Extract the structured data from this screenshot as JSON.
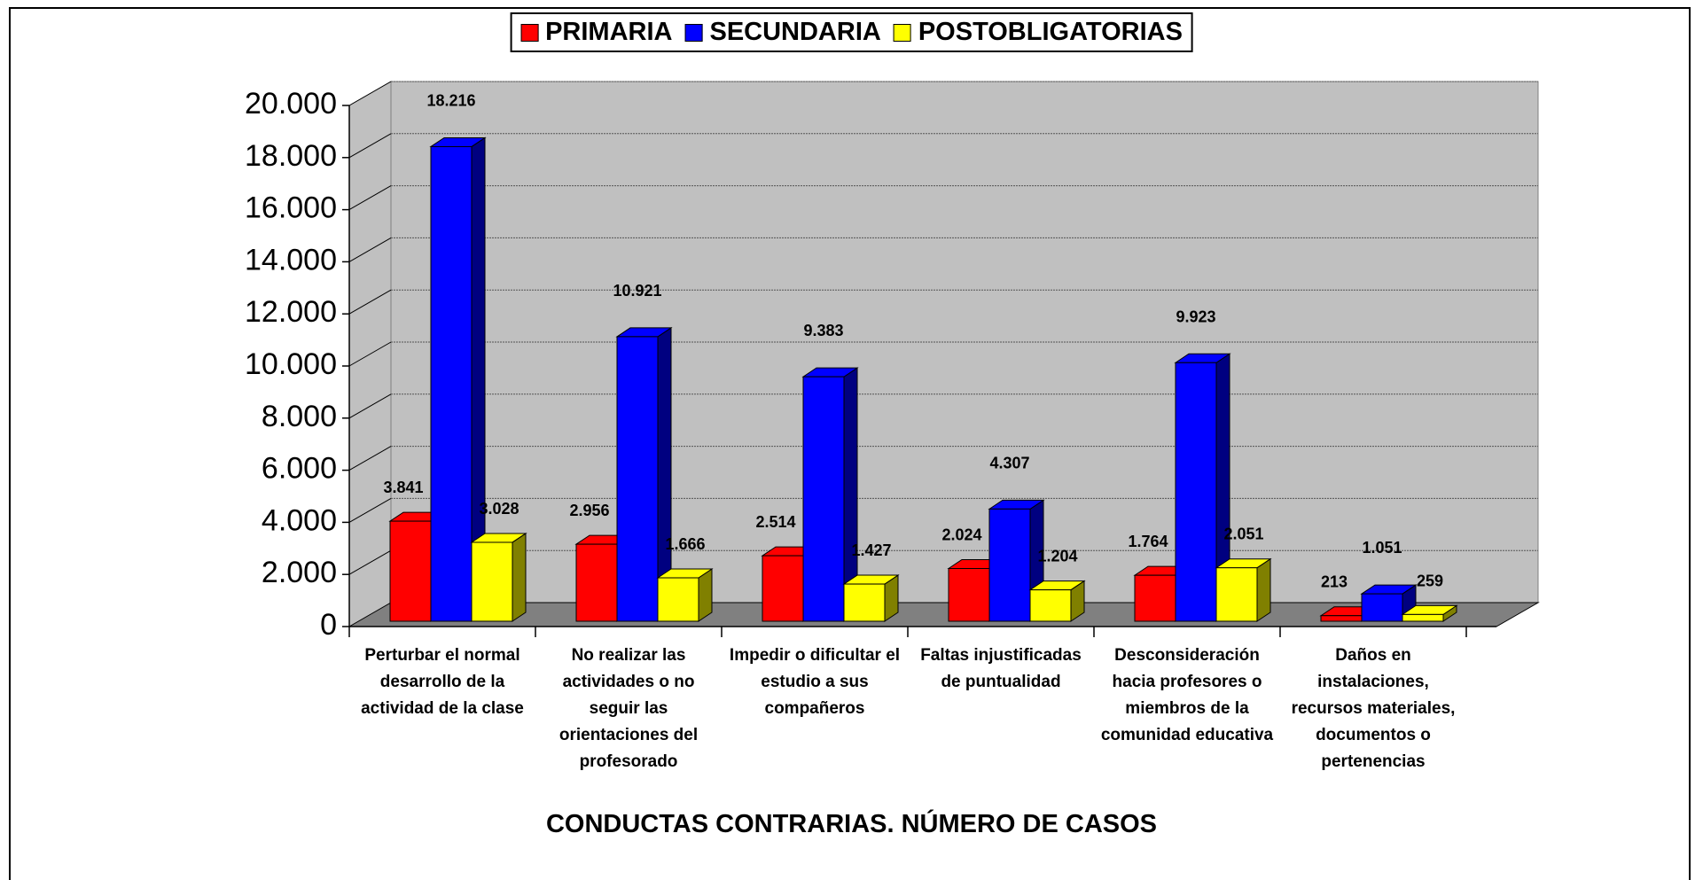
{
  "chart_data": {
    "type": "bar3d",
    "title": "CONDUCTAS CONTRARIAS. NÚMERO DE CASOS",
    "categories": [
      "Perturbar el normal desarrollo de la actividad de la clase",
      "No realizar las actividades o no seguir las orientaciones del profesorado",
      "Impedir o dificultar el estudio a sus compañeros",
      "Faltas injustificadas de puntualidad",
      "Desconsideración hacia profesores o miembros de la comunidad educativa",
      "Daños en instalaciones, recursos materiales, documentos o pertenencias"
    ],
    "series": [
      {
        "name": "PRIMARIA",
        "color": "#ff0000",
        "side": "#800000",
        "values": [
          3841,
          2956,
          2514,
          2024,
          1764,
          213
        ],
        "value_labels": [
          "3.841",
          "2.956",
          "2.514",
          "2.024",
          "1.764",
          "213"
        ]
      },
      {
        "name": "SECUNDARIA",
        "color": "#0000ff",
        "side": "#000080",
        "values": [
          18216,
          10921,
          9383,
          4307,
          9923,
          1051
        ],
        "value_labels": [
          "18.216",
          "10.921",
          "9.383",
          "4.307",
          "9.923",
          "1.051"
        ]
      },
      {
        "name": "POSTOBLIGATORIAS",
        "color": "#ffff00",
        "side": "#808000",
        "values": [
          3028,
          1666,
          1427,
          1204,
          2051,
          259
        ],
        "value_labels": [
          "3.028",
          "1.666",
          "1.427",
          "1.204",
          "2.051",
          "259"
        ]
      }
    ],
    "ylim": [
      0,
      20000
    ],
    "yticks": [
      0,
      {
        "value": 2000,
        "label": "2.000"
      },
      {
        "value": 4000,
        "label": "4.000"
      },
      {
        "value": 6000,
        "label": "6.000"
      },
      {
        "value": 8000,
        "label": "8.000"
      },
      {
        "value": 10000,
        "label": "10.000"
      },
      {
        "value": 12000,
        "label": "12.000"
      },
      {
        "value": 14000,
        "label": "14.000"
      },
      {
        "value": 16000,
        "label": "16.000"
      },
      {
        "value": 18000,
        "label": "18.000"
      },
      {
        "value": 20000,
        "label": "20.000"
      }
    ],
    "grid": true,
    "legend": "top"
  }
}
